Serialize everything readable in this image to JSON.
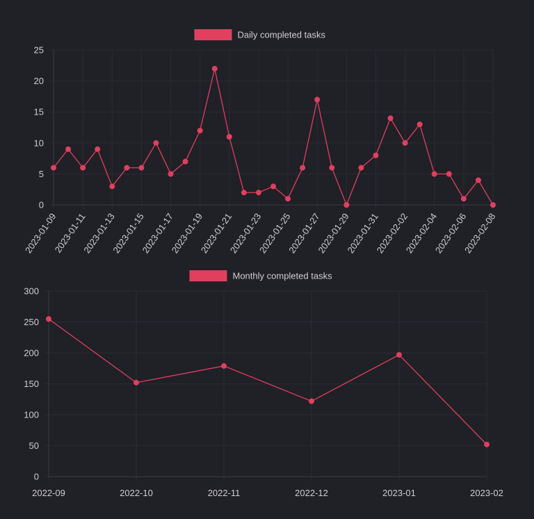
{
  "chart_data": [
    {
      "type": "line",
      "color": "#e0405e",
      "legend_position": "top-center",
      "grid": true,
      "ylim": [
        0,
        25
      ],
      "yticks": [
        0,
        5,
        10,
        15,
        20,
        25
      ],
      "categories": [
        "2023-01-09",
        "2023-01-10",
        "2023-01-11",
        "2023-01-12",
        "2023-01-13",
        "2023-01-14",
        "2023-01-15",
        "2023-01-16",
        "2023-01-17",
        "2023-01-18",
        "2023-01-19",
        "2023-01-20",
        "2023-01-21",
        "2023-01-22",
        "2023-01-23",
        "2023-01-24",
        "2023-01-25",
        "2023-01-26",
        "2023-01-27",
        "2023-01-28",
        "2023-01-29",
        "2023-01-30",
        "2023-01-31",
        "2023-02-01",
        "2023-02-02",
        "2023-02-03",
        "2023-02-04",
        "2023-02-05",
        "2023-02-06",
        "2023-02-07",
        "2023-02-08"
      ],
      "xtick_labels": [
        "2023-01-09",
        "2023-01-11",
        "2023-01-13",
        "2023-01-15",
        "2023-01-17",
        "2023-01-19",
        "2023-01-21",
        "2023-01-23",
        "2023-01-25",
        "2023-01-27",
        "2023-01-29",
        "2023-01-31",
        "2023-02-02",
        "2023-02-04",
        "2023-02-06",
        "2023-02-08"
      ],
      "series": [
        {
          "name": "Daily completed tasks",
          "values": [
            6,
            9,
            6,
            9,
            3,
            6,
            6,
            10,
            5,
            7,
            12,
            22,
            11,
            2,
            2,
            3,
            1,
            6,
            17,
            6,
            0,
            6,
            8,
            14,
            10,
            13,
            5,
            5,
            1,
            4,
            0
          ]
        }
      ]
    },
    {
      "type": "line",
      "color": "#e0405e",
      "legend_position": "top-center",
      "grid": true,
      "ylim": [
        0,
        300
      ],
      "yticks": [
        0,
        50,
        100,
        150,
        200,
        250,
        300
      ],
      "categories": [
        "2022-09",
        "2022-10",
        "2022-11",
        "2022-12",
        "2023-01",
        "2023-02"
      ],
      "xtick_labels": [
        "2022-09",
        "2022-10",
        "2022-11",
        "2022-12",
        "2023-01",
        "2023-02"
      ],
      "series": [
        {
          "name": "Monthly completed tasks",
          "values": [
            255,
            152,
            179,
            122,
            197,
            52
          ]
        }
      ]
    }
  ]
}
